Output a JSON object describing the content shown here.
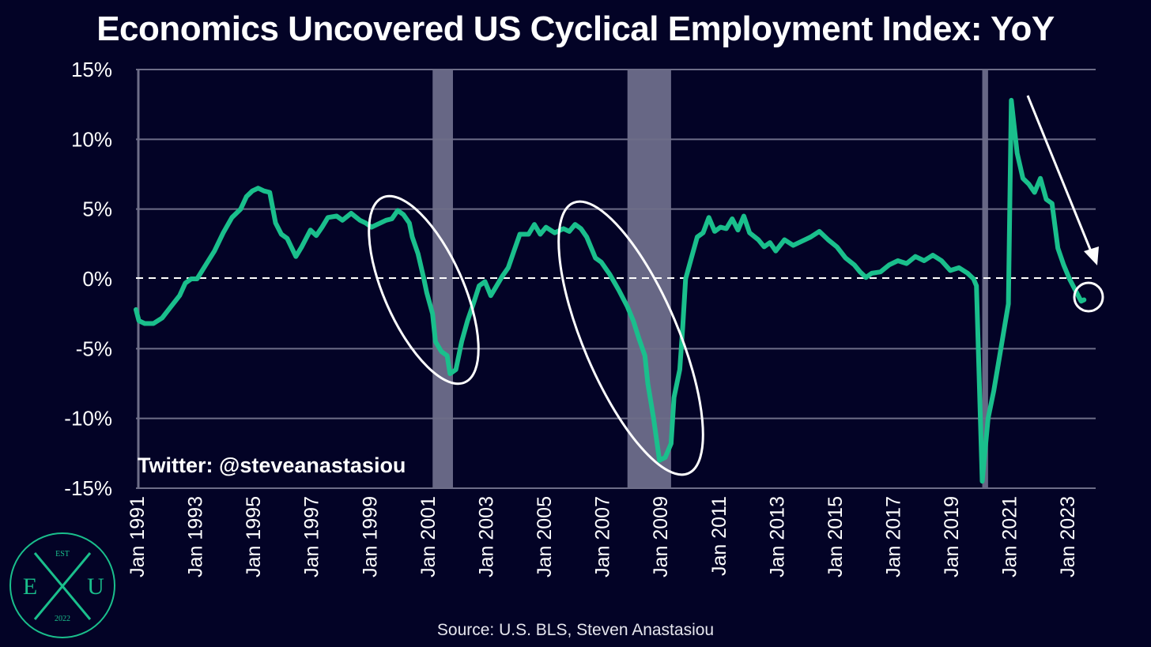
{
  "source": "Source: U.S. BLS, Steven Anastasiou",
  "credit": "Twitter: @steveanastasiou",
  "logo": {
    "top": "EST",
    "left": "E",
    "center": "X",
    "right": "U",
    "bottom": "2022"
  },
  "colors": {
    "background": "#030326",
    "line": "#1abf8c",
    "recession": "#8a8aa6",
    "grid": "#6e6e88",
    "annotation": "#ffffff"
  },
  "chart_data": {
    "type": "line",
    "title": "Economics Uncovered US Cyclical Employment Index: YoY",
    "xlabel": "",
    "ylabel": "",
    "ylim": [
      -15,
      15
    ],
    "yticks": [
      15,
      10,
      5,
      0,
      -5,
      -10,
      -15
    ],
    "ytick_labels": [
      "15%",
      "10%",
      "5%",
      "0%",
      "-5%",
      "-10%",
      "-15%"
    ],
    "xlim": [
      1991.0,
      2024.0
    ],
    "xticks": [
      1991,
      1993,
      1995,
      1997,
      1999,
      2001,
      2003,
      2005,
      2007,
      2009,
      2011,
      2013,
      2015,
      2017,
      2019,
      2021,
      2023
    ],
    "xtick_labels": [
      "Jan 1991",
      "Jan 1993",
      "Jan 1995",
      "Jan 1997",
      "Jan 1999",
      "Jan 2001",
      "Jan 2003",
      "Jan 2005",
      "Jan 2007",
      "Jan 2009",
      "Jan 2011",
      "Jan 2013",
      "Jan 2015",
      "Jan 2017",
      "Jan 2019",
      "Jan 2021",
      "Jan 2023"
    ],
    "grid": true,
    "reference_line": {
      "y": 0,
      "style": "dashed"
    },
    "recession_periods": [
      [
        2001.2,
        2001.9
      ],
      [
        2007.9,
        2009.4
      ],
      [
        2020.1,
        2020.3
      ]
    ],
    "series": [
      {
        "name": "",
        "points": [
          [
            1991.0,
            -2.2
          ],
          [
            1991.1,
            -3.0
          ],
          [
            1991.3,
            -3.2
          ],
          [
            1991.6,
            -3.2
          ],
          [
            1991.9,
            -2.8
          ],
          [
            1992.2,
            -2.0
          ],
          [
            1992.5,
            -1.2
          ],
          [
            1992.7,
            -0.3
          ],
          [
            1992.9,
            0.0
          ],
          [
            1993.1,
            0.0
          ],
          [
            1993.4,
            1.0
          ],
          [
            1993.7,
            2.0
          ],
          [
            1994.0,
            3.3
          ],
          [
            1994.3,
            4.4
          ],
          [
            1994.6,
            5.0
          ],
          [
            1994.8,
            5.9
          ],
          [
            1995.0,
            6.3
          ],
          [
            1995.2,
            6.5
          ],
          [
            1995.4,
            6.3
          ],
          [
            1995.6,
            6.2
          ],
          [
            1995.8,
            4.0
          ],
          [
            1996.0,
            3.2
          ],
          [
            1996.2,
            2.9
          ],
          [
            1996.5,
            1.6
          ],
          [
            1996.7,
            2.3
          ],
          [
            1997.0,
            3.5
          ],
          [
            1997.2,
            3.1
          ],
          [
            1997.4,
            3.7
          ],
          [
            1997.6,
            4.4
          ],
          [
            1997.9,
            4.5
          ],
          [
            1998.1,
            4.2
          ],
          [
            1998.4,
            4.7
          ],
          [
            1998.7,
            4.2
          ],
          [
            1998.9,
            4.0
          ],
          [
            1999.1,
            3.7
          ],
          [
            1999.3,
            3.9
          ],
          [
            1999.6,
            4.2
          ],
          [
            1999.8,
            4.3
          ],
          [
            2000.0,
            4.9
          ],
          [
            2000.2,
            4.6
          ],
          [
            2000.4,
            4.0
          ],
          [
            2000.5,
            3.0
          ],
          [
            2000.7,
            1.8
          ],
          [
            2000.9,
            0.0
          ],
          [
            2001.0,
            -1.0
          ],
          [
            2001.2,
            -2.5
          ],
          [
            2001.3,
            -4.5
          ],
          [
            2001.5,
            -5.2
          ],
          [
            2001.7,
            -5.5
          ],
          [
            2001.8,
            -6.8
          ],
          [
            2002.0,
            -6.5
          ],
          [
            2002.2,
            -4.5
          ],
          [
            2002.4,
            -3.0
          ],
          [
            2002.6,
            -1.8
          ],
          [
            2002.8,
            -0.5
          ],
          [
            2003.0,
            -0.2
          ],
          [
            2003.2,
            -1.2
          ],
          [
            2003.4,
            -0.5
          ],
          [
            2003.6,
            0.2
          ],
          [
            2003.8,
            0.8
          ],
          [
            2004.0,
            2.0
          ],
          [
            2004.2,
            3.2
          ],
          [
            2004.5,
            3.2
          ],
          [
            2004.7,
            3.9
          ],
          [
            2004.9,
            3.2
          ],
          [
            2005.1,
            3.7
          ],
          [
            2005.4,
            3.3
          ],
          [
            2005.7,
            3.6
          ],
          [
            2005.9,
            3.4
          ],
          [
            2006.1,
            3.9
          ],
          [
            2006.3,
            3.6
          ],
          [
            2006.5,
            3.0
          ],
          [
            2006.8,
            1.5
          ],
          [
            2007.0,
            1.2
          ],
          [
            2007.3,
            0.3
          ],
          [
            2007.6,
            -0.8
          ],
          [
            2007.9,
            -2.0
          ],
          [
            2008.1,
            -3.0
          ],
          [
            2008.3,
            -4.3
          ],
          [
            2008.5,
            -5.5
          ],
          [
            2008.6,
            -7.5
          ],
          [
            2008.8,
            -10.0
          ],
          [
            2008.9,
            -11.5
          ],
          [
            2009.0,
            -13.0
          ],
          [
            2009.2,
            -12.8
          ],
          [
            2009.4,
            -11.8
          ],
          [
            2009.5,
            -8.5
          ],
          [
            2009.7,
            -6.5
          ],
          [
            2009.8,
            -3.5
          ],
          [
            2009.9,
            0.0
          ],
          [
            2010.1,
            1.5
          ],
          [
            2010.3,
            3.0
          ],
          [
            2010.5,
            3.3
          ],
          [
            2010.7,
            4.4
          ],
          [
            2010.9,
            3.4
          ],
          [
            2011.1,
            3.7
          ],
          [
            2011.3,
            3.6
          ],
          [
            2011.5,
            4.3
          ],
          [
            2011.7,
            3.5
          ],
          [
            2011.9,
            4.5
          ],
          [
            2012.1,
            3.3
          ],
          [
            2012.4,
            2.8
          ],
          [
            2012.6,
            2.3
          ],
          [
            2012.8,
            2.6
          ],
          [
            2013.0,
            2.0
          ],
          [
            2013.3,
            2.8
          ],
          [
            2013.6,
            2.4
          ],
          [
            2013.9,
            2.7
          ],
          [
            2014.2,
            3.0
          ],
          [
            2014.5,
            3.4
          ],
          [
            2014.8,
            2.8
          ],
          [
            2015.1,
            2.3
          ],
          [
            2015.4,
            1.5
          ],
          [
            2015.7,
            1.0
          ],
          [
            2015.9,
            0.5
          ],
          [
            2016.1,
            0.1
          ],
          [
            2016.3,
            0.4
          ],
          [
            2016.6,
            0.5
          ],
          [
            2016.9,
            1.0
          ],
          [
            2017.2,
            1.3
          ],
          [
            2017.5,
            1.1
          ],
          [
            2017.8,
            1.6
          ],
          [
            2018.1,
            1.3
          ],
          [
            2018.4,
            1.7
          ],
          [
            2018.7,
            1.3
          ],
          [
            2019.0,
            0.6
          ],
          [
            2019.3,
            0.8
          ],
          [
            2019.6,
            0.4
          ],
          [
            2019.8,
            0.0
          ],
          [
            2019.9,
            -0.5
          ],
          [
            2020.1,
            -14.5
          ],
          [
            2020.3,
            -10.0
          ],
          [
            2020.5,
            -8.0
          ],
          [
            2020.7,
            -5.5
          ],
          [
            2020.9,
            -3.0
          ],
          [
            2021.0,
            -1.8
          ],
          [
            2021.1,
            12.8
          ],
          [
            2021.3,
            9.0
          ],
          [
            2021.5,
            7.2
          ],
          [
            2021.7,
            6.8
          ],
          [
            2021.9,
            6.2
          ],
          [
            2022.1,
            7.2
          ],
          [
            2022.3,
            5.7
          ],
          [
            2022.5,
            5.4
          ],
          [
            2022.7,
            2.2
          ],
          [
            2022.9,
            1.0
          ],
          [
            2023.1,
            0.0
          ],
          [
            2023.3,
            -0.8
          ],
          [
            2023.5,
            -1.6
          ],
          [
            2023.6,
            -1.5
          ]
        ]
      }
    ],
    "annotations": [
      "ellipse around 2000–2002 decline",
      "ellipse around 2007–2009 decline",
      "downward arrow 2021–2023",
      "circle around latest value"
    ]
  }
}
